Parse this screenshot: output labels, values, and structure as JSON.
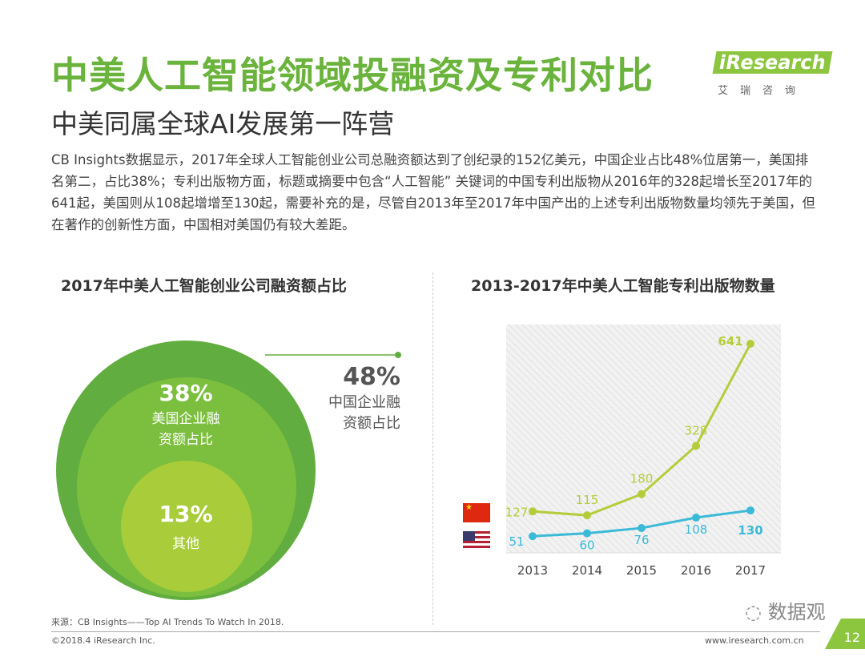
{
  "header": {
    "title": "中美人工智能领域投融资及专利对比",
    "subtitle": "中美同属全球AI发展第一阵营",
    "logo_text": "iResearch",
    "logo_cn": "艾瑞咨询"
  },
  "body_text": "CB Insights数据显示，2017年全球人工智能创业公司总融资额达到了创纪录的152亿美元，中国企业占比48%位居第一，美国排名第二，占比38%；专利出版物方面，标题或摘要中包含“人工智能” 关键词的中国专利出版物从2016年的328起增长至2017年的641起，美国则从108起增增至130起，需要补充的是，尽管自2013年至2017年中国产出的上述专利出版物数量均领先于美国，但在著作的创新性方面，中国相对美国仍有较大差距。",
  "chart_data": [
    {
      "type": "pie",
      "title": "2017年中美人工智能创业公司融资额占比",
      "slices": [
        {
          "value": 48,
          "label": "48%",
          "name": "中国企业融资额占比",
          "color": "#62ad3f"
        },
        {
          "value": 38,
          "label": "38%",
          "name": "美国企业融资额占比",
          "color": "#7cbf3e"
        },
        {
          "value": 13,
          "label": "13%",
          "name": "其他",
          "color": "#a9cd3a"
        }
      ]
    },
    {
      "type": "line",
      "title": "2013-2017年中美人工智能专利出版物数量",
      "categories": [
        "2013",
        "2014",
        "2015",
        "2016",
        "2017"
      ],
      "ylim": [
        0,
        700
      ],
      "grid": false,
      "series": [
        {
          "legend_icon": "china-flag-icon",
          "values": [
            127,
            115,
            180,
            328,
            641
          ],
          "color": "#b5cc3a"
        },
        {
          "legend_icon": "usa-flag-icon",
          "values": [
            51,
            60,
            76,
            108,
            130
          ],
          "color": "#3bbad8"
        }
      ]
    }
  ],
  "footer": {
    "source": "来源：CB Insights——Top AI Trends To Watch In 2018.",
    "copyright": "©2018.4 iResearch Inc.",
    "url": "www.iresearch.com.cn",
    "page": "12",
    "watermark": "数据观"
  }
}
